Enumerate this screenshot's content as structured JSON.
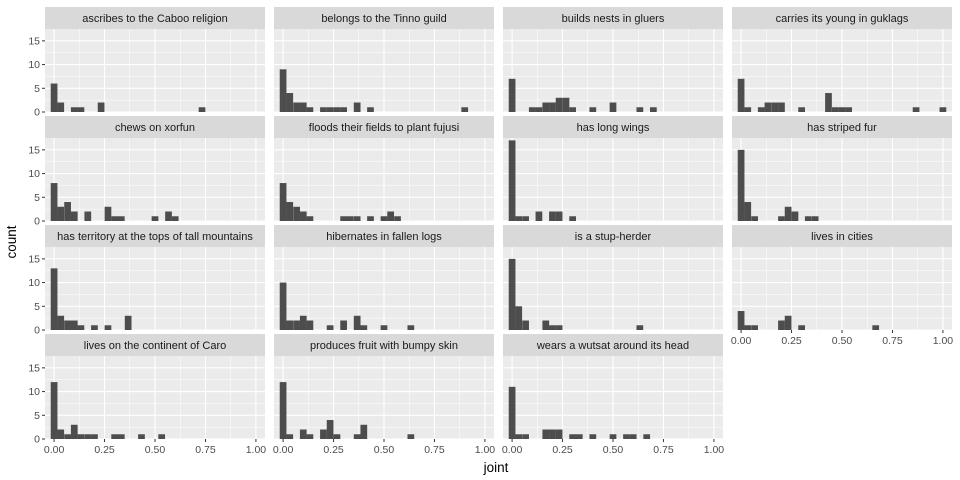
{
  "chart_data": {
    "type": "bar",
    "chart_kind": "faceted-histogram",
    "xlabel": "joint",
    "ylabel": "count",
    "xlim": [
      0,
      1
    ],
    "ylim": [
      0,
      17.5
    ],
    "x_ticks": [
      0,
      0.25,
      0.5,
      0.75,
      1
    ],
    "x_tick_labels": [
      "0.00",
      "0.25",
      "0.50",
      "0.75",
      "1.00"
    ],
    "y_ticks": [
      0,
      5,
      10,
      15
    ],
    "y_tick_labels": [
      "0",
      "5",
      "10",
      "15"
    ],
    "bin_width": 0.0333,
    "grid": true,
    "colors": {
      "bar": "#4d4d4d",
      "panel": "#ebebeb",
      "strip": "#d9d9d9",
      "grid": "#ffffff"
    },
    "facets": [
      {
        "name": "ascribes to the Caboo religion",
        "bins": [
          [
            0,
            6
          ],
          [
            0.033,
            2
          ],
          [
            0.1,
            1
          ],
          [
            0.133,
            1
          ],
          [
            0.233,
            2
          ],
          [
            0.733,
            1
          ]
        ]
      },
      {
        "name": "belongs to the Tinno guild",
        "bins": [
          [
            0,
            9
          ],
          [
            0.033,
            4
          ],
          [
            0.067,
            2
          ],
          [
            0.1,
            2
          ],
          [
            0.133,
            1
          ],
          [
            0.2,
            1
          ],
          [
            0.233,
            1
          ],
          [
            0.267,
            1
          ],
          [
            0.3,
            1
          ],
          [
            0.367,
            2
          ],
          [
            0.433,
            1
          ],
          [
            0.9,
            1
          ]
        ]
      },
      {
        "name": "builds nests in gluers",
        "bins": [
          [
            0,
            7
          ],
          [
            0.1,
            1
          ],
          [
            0.133,
            1
          ],
          [
            0.167,
            2
          ],
          [
            0.2,
            2
          ],
          [
            0.233,
            3
          ],
          [
            0.267,
            3
          ],
          [
            0.3,
            1
          ],
          [
            0.4,
            1
          ],
          [
            0.5,
            2
          ],
          [
            0.633,
            1
          ],
          [
            0.7,
            1
          ]
        ]
      },
      {
        "name": "carries its young in guklags",
        "bins": [
          [
            0,
            7
          ],
          [
            0.033,
            1
          ],
          [
            0.1,
            1
          ],
          [
            0.133,
            2
          ],
          [
            0.167,
            2
          ],
          [
            0.2,
            2
          ],
          [
            0.3,
            1
          ],
          [
            0.433,
            4
          ],
          [
            0.467,
            1
          ],
          [
            0.5,
            1
          ],
          [
            0.533,
            1
          ],
          [
            0.867,
            1
          ],
          [
            1.0,
            1
          ]
        ]
      },
      {
        "name": "chews on xorfun",
        "bins": [
          [
            0,
            8
          ],
          [
            0.033,
            3
          ],
          [
            0.067,
            4
          ],
          [
            0.1,
            2
          ],
          [
            0.167,
            2
          ],
          [
            0.267,
            3
          ],
          [
            0.3,
            1
          ],
          [
            0.333,
            1
          ],
          [
            0.5,
            1
          ],
          [
            0.567,
            2
          ],
          [
            0.6,
            1
          ]
        ]
      },
      {
        "name": "floods their fields to plant fujusi",
        "bins": [
          [
            0,
            8
          ],
          [
            0.033,
            4
          ],
          [
            0.067,
            3
          ],
          [
            0.1,
            2
          ],
          [
            0.133,
            1
          ],
          [
            0.3,
            1
          ],
          [
            0.333,
            1
          ],
          [
            0.367,
            1
          ],
          [
            0.433,
            1
          ],
          [
            0.5,
            1
          ],
          [
            0.533,
            2
          ],
          [
            0.567,
            1
          ]
        ]
      },
      {
        "name": "has long wings",
        "bins": [
          [
            0,
            17
          ],
          [
            0.033,
            1
          ],
          [
            0.067,
            1
          ],
          [
            0.133,
            2
          ],
          [
            0.2,
            2
          ],
          [
            0.233,
            2
          ],
          [
            0.3,
            1
          ]
        ]
      },
      {
        "name": "has striped fur",
        "bins": [
          [
            0,
            15
          ],
          [
            0.033,
            4
          ],
          [
            0.067,
            1
          ],
          [
            0.2,
            1
          ],
          [
            0.233,
            3
          ],
          [
            0.267,
            2
          ],
          [
            0.333,
            1
          ],
          [
            0.367,
            1
          ]
        ]
      },
      {
        "name": "has territory at the tops of tall mountains",
        "bins": [
          [
            0,
            13
          ],
          [
            0.033,
            3
          ],
          [
            0.067,
            2
          ],
          [
            0.1,
            2
          ],
          [
            0.133,
            1
          ],
          [
            0.2,
            1
          ],
          [
            0.267,
            1
          ],
          [
            0.367,
            3
          ]
        ]
      },
      {
        "name": "hibernates in fallen logs",
        "bins": [
          [
            0,
            10
          ],
          [
            0.033,
            2
          ],
          [
            0.067,
            2
          ],
          [
            0.1,
            3
          ],
          [
            0.133,
            2
          ],
          [
            0.233,
            1
          ],
          [
            0.3,
            2
          ],
          [
            0.367,
            3
          ],
          [
            0.4,
            1
          ],
          [
            0.5,
            1
          ],
          [
            0.633,
            1
          ]
        ]
      },
      {
        "name": "is a stup-herder",
        "bins": [
          [
            0,
            15
          ],
          [
            0.033,
            5
          ],
          [
            0.067,
            2
          ],
          [
            0.167,
            2
          ],
          [
            0.2,
            1
          ],
          [
            0.233,
            1
          ],
          [
            0.633,
            1
          ]
        ]
      },
      {
        "name": "lives in cities",
        "bins": [
          [
            0,
            4
          ],
          [
            0.033,
            1
          ],
          [
            0.067,
            1
          ],
          [
            0.2,
            2
          ],
          [
            0.233,
            3
          ],
          [
            0.3,
            1
          ],
          [
            0.667,
            1
          ]
        ]
      },
      {
        "name": "lives on the continent of Caro",
        "bins": [
          [
            0,
            12
          ],
          [
            0.033,
            2
          ],
          [
            0.067,
            1
          ],
          [
            0.1,
            3
          ],
          [
            0.133,
            1
          ],
          [
            0.167,
            1
          ],
          [
            0.2,
            1
          ],
          [
            0.3,
            1
          ],
          [
            0.333,
            1
          ],
          [
            0.433,
            1
          ],
          [
            0.533,
            1
          ]
        ]
      },
      {
        "name": "produces fruit with bumpy skin",
        "bins": [
          [
            0,
            12
          ],
          [
            0.033,
            1
          ],
          [
            0.1,
            2
          ],
          [
            0.133,
            1
          ],
          [
            0.2,
            2
          ],
          [
            0.233,
            4
          ],
          [
            0.267,
            1
          ],
          [
            0.367,
            1
          ],
          [
            0.4,
            3
          ],
          [
            0.633,
            1
          ]
        ]
      },
      {
        "name": "wears a wutsat around its head",
        "bins": [
          [
            0,
            11
          ],
          [
            0.033,
            1
          ],
          [
            0.067,
            1
          ],
          [
            0.167,
            2
          ],
          [
            0.2,
            2
          ],
          [
            0.233,
            2
          ],
          [
            0.3,
            1
          ],
          [
            0.333,
            1
          ],
          [
            0.4,
            1
          ],
          [
            0.5,
            1
          ],
          [
            0.567,
            1
          ],
          [
            0.6,
            1
          ],
          [
            0.667,
            1
          ]
        ]
      }
    ]
  }
}
